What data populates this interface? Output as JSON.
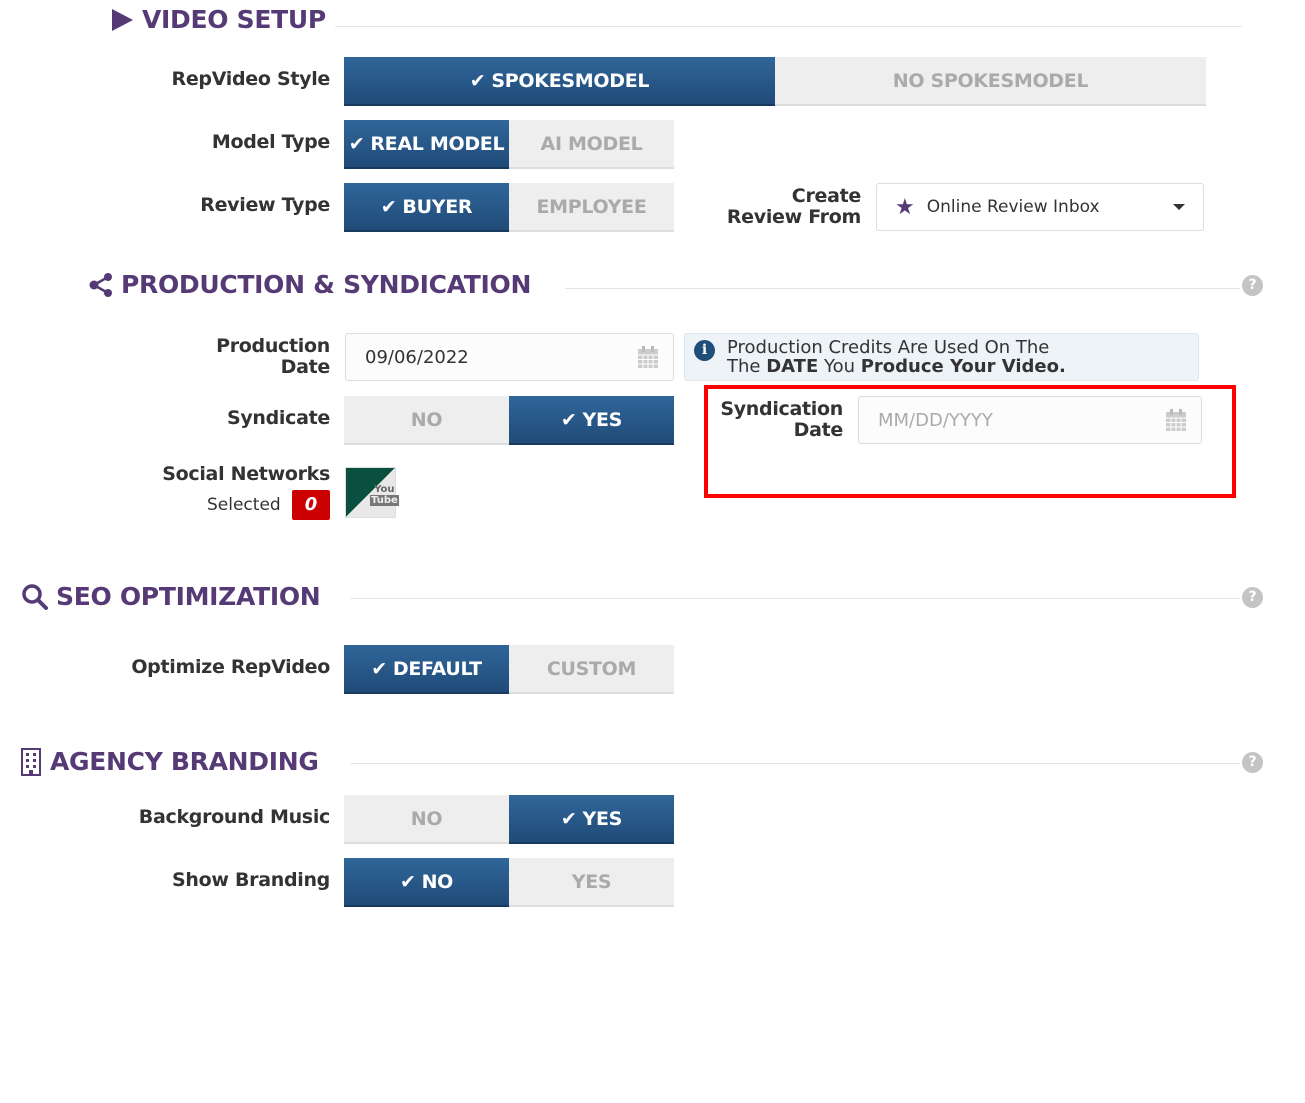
{
  "video_setup": {
    "title": "VIDEO SETUP",
    "repvideo_style": {
      "label": "RepVideo Style",
      "options": [
        "SPOKESMODEL",
        "NO SPOKESMODEL"
      ],
      "selected": "SPOKESMODEL"
    },
    "model_type": {
      "label": "Model Type",
      "options": [
        "REAL MODEL",
        "AI MODEL"
      ],
      "selected": "REAL MODEL"
    },
    "review_type": {
      "label": "Review Type",
      "options": [
        "BUYER",
        "EMPLOYEE"
      ],
      "selected": "BUYER"
    },
    "create_review_from": {
      "label_line1": "Create",
      "label_line2": "Review From",
      "value": "Online Review Inbox"
    }
  },
  "production": {
    "title": "PRODUCTION & SYNDICATION",
    "help": "?",
    "production_date": {
      "label_line1": "Production",
      "label_line2": "Date",
      "value": "09/06/2022"
    },
    "info": {
      "line1": "Production Credits Are Used On The",
      "line2_a": "The ",
      "line2_b": "DATE",
      "line2_c": " You ",
      "line2_d": "Produce Your Video."
    },
    "syndicate": {
      "label": "Syndicate",
      "options": [
        "NO",
        "YES"
      ],
      "selected": "YES"
    },
    "syndication_date": {
      "label_line1": "Syndication",
      "label_line2": "Date",
      "placeholder": "MM/DD/YYYY",
      "value": ""
    },
    "social": {
      "label": "Social Networks",
      "selected_label": "Selected",
      "count": "0",
      "network": "YouTube"
    }
  },
  "seo": {
    "title": "SEO OPTIMIZATION",
    "help": "?",
    "optimize": {
      "label": "Optimize RepVideo",
      "options": [
        "DEFAULT",
        "CUSTOM"
      ],
      "selected": "DEFAULT"
    }
  },
  "branding": {
    "title": "AGENCY BRANDING",
    "help": "?",
    "music": {
      "label": "Background Music",
      "options": [
        "NO",
        "YES"
      ],
      "selected": "YES"
    },
    "show": {
      "label": "Show Branding",
      "options": [
        "NO",
        "YES"
      ],
      "selected": "NO"
    }
  },
  "colors": {
    "heading": "#553a75",
    "active": "#2a5a8a",
    "highlight": "#ff0000",
    "badge": "#cc0000"
  }
}
